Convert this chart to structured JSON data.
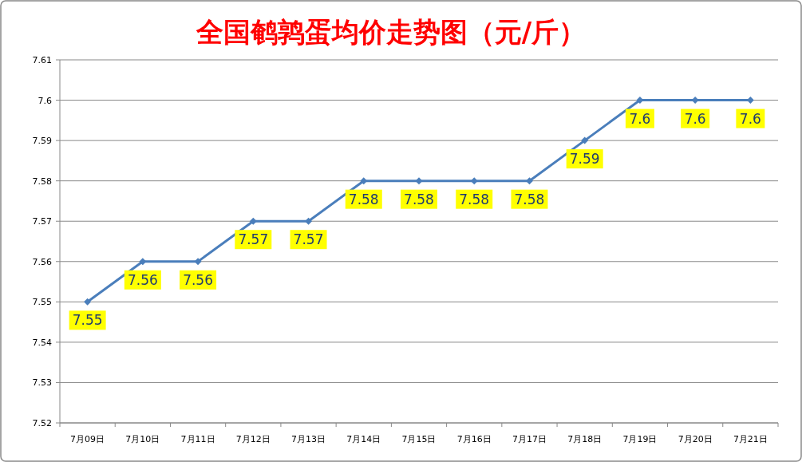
{
  "chart_data": {
    "type": "line",
    "title": "全国鹌鹑蛋均价走势图（元/斤）",
    "categories": [
      "7月09日",
      "7月10日",
      "7月11日",
      "7月12日",
      "7月13日",
      "7月14日",
      "7月15日",
      "7月16日",
      "7月17日",
      "7月18日",
      "7月19日",
      "7月20日",
      "7月21日"
    ],
    "values": [
      7.55,
      7.56,
      7.56,
      7.57,
      7.57,
      7.58,
      7.58,
      7.58,
      7.58,
      7.59,
      7.6,
      7.6,
      7.6
    ],
    "color": "#4a7ebb",
    "marker": "diamond",
    "data_labels": true,
    "grid": "y",
    "ylim": [
      7.52,
      7.61
    ],
    "yticks": [
      7.52,
      7.53,
      7.54,
      7.55,
      7.56,
      7.57,
      7.58,
      7.59,
      7.6,
      7.61
    ]
  }
}
